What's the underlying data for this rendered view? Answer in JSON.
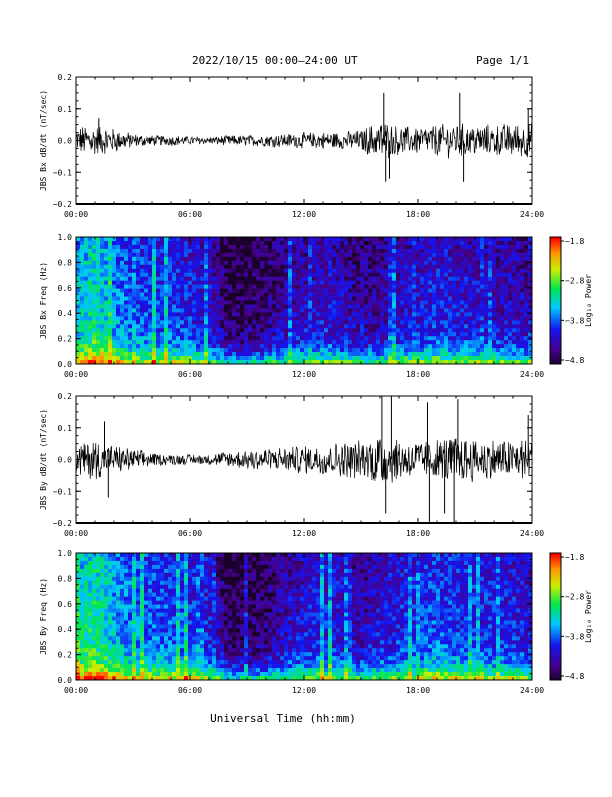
{
  "header": {
    "title": "2022/10/15  00:00–24:00 UT",
    "page_label": "Page 1/1"
  },
  "footer": {
    "xlabel": "Universal Time (hh:mm)"
  },
  "chart_data": [
    {
      "type": "line",
      "ylabel": "JBS Bx dB/dt (nT/sec)",
      "xlim": [
        0,
        24
      ],
      "ylim": [
        -0.2,
        0.2
      ],
      "yticks": [
        "0.2",
        "0.1",
        "0.0",
        "−0.1",
        "−0.2"
      ],
      "xticks": [
        "00:00",
        "06:00",
        "12:00",
        "18:00",
        "24:00"
      ],
      "envelope_x": [
        0,
        1,
        2,
        3,
        4,
        5,
        6,
        7,
        8,
        9,
        10,
        11,
        12,
        13,
        14,
        15,
        16,
        17,
        18,
        19,
        20,
        21,
        22,
        23,
        24
      ],
      "envelope_amplitude": [
        0.04,
        0.045,
        0.035,
        0.02,
        0.015,
        0.015,
        0.012,
        0.01,
        0.015,
        0.015,
        0.018,
        0.02,
        0.022,
        0.025,
        0.025,
        0.03,
        0.06,
        0.04,
        0.04,
        0.045,
        0.05,
        0.045,
        0.045,
        0.05,
        0.05
      ],
      "spikes": [
        {
          "x": 1.2,
          "y": 0.07
        },
        {
          "x": 16.2,
          "y": 0.15
        },
        {
          "x": 16.3,
          "y": -0.13
        },
        {
          "x": 16.5,
          "y": -0.12
        },
        {
          "x": 20.2,
          "y": 0.15
        },
        {
          "x": 20.4,
          "y": -0.13
        },
        {
          "x": 23.8,
          "y": 0.1
        }
      ]
    },
    {
      "type": "heatmap",
      "ylabel": "JBS Bx Freq (Hz)",
      "xlim": [
        0,
        24
      ],
      "ylim": [
        0,
        1.0
      ],
      "yticks": [
        "1.0",
        "0.8",
        "0.6",
        "0.4",
        "0.2",
        "0.0"
      ],
      "xticks": [
        "00:00",
        "06:00",
        "12:00",
        "18:00",
        "24:00"
      ],
      "colorbar": {
        "label": "Log₁₀ Power",
        "ticks": [
          "−1.8",
          "−2.8",
          "−3.8",
          "−4.8"
        ],
        "range": [
          -4.8,
          -1.8
        ]
      },
      "level_hours": [
        0,
        1,
        2,
        3,
        4,
        5,
        6,
        7,
        8,
        9,
        10,
        11,
        12,
        13,
        14,
        15,
        16,
        17,
        18,
        19,
        20,
        21,
        22,
        23,
        24
      ],
      "level_log_power": [
        -3.4,
        -3.1,
        -3.5,
        -3.7,
        -3.8,
        -3.8,
        -3.9,
        -4.0,
        -4.5,
        -4.5,
        -4.4,
        -4.2,
        -4.1,
        -4.0,
        -4.1,
        -4.3,
        -4.2,
        -4.1,
        -4.0,
        -3.9,
        -4.0,
        -4.0,
        -4.1,
        -4.1,
        -4.2
      ]
    },
    {
      "type": "line",
      "ylabel": "JBS By dB/dt (nT/sec)",
      "xlim": [
        0,
        24
      ],
      "ylim": [
        -0.2,
        0.2
      ],
      "yticks": [
        "0.2",
        "0.1",
        "0.0",
        "−0.1",
        "−0.2"
      ],
      "xticks": [
        "00:00",
        "06:00",
        "12:00",
        "18:00",
        "24:00"
      ],
      "envelope_x": [
        0,
        1,
        2,
        3,
        4,
        5,
        6,
        7,
        8,
        9,
        10,
        11,
        12,
        13,
        14,
        15,
        16,
        17,
        18,
        19,
        20,
        21,
        22,
        23,
        24
      ],
      "envelope_amplitude": [
        0.045,
        0.06,
        0.04,
        0.03,
        0.02,
        0.015,
        0.015,
        0.015,
        0.025,
        0.03,
        0.035,
        0.035,
        0.04,
        0.045,
        0.05,
        0.055,
        0.08,
        0.06,
        0.055,
        0.06,
        0.07,
        0.06,
        0.06,
        0.06,
        0.06
      ],
      "spikes": [
        {
          "x": 1.5,
          "y": 0.12
        },
        {
          "x": 1.7,
          "y": -0.12
        },
        {
          "x": 16.1,
          "y": 0.2
        },
        {
          "x": 16.3,
          "y": -0.17
        },
        {
          "x": 16.6,
          "y": 0.2
        },
        {
          "x": 18.5,
          "y": 0.18
        },
        {
          "x": 18.6,
          "y": -0.2
        },
        {
          "x": 19.4,
          "y": -0.17
        },
        {
          "x": 19.9,
          "y": -0.2
        },
        {
          "x": 20.1,
          "y": 0.19
        },
        {
          "x": 23.8,
          "y": 0.14
        }
      ]
    },
    {
      "type": "heatmap",
      "ylabel": "JBS By Freq (Hz)",
      "xlim": [
        0,
        24
      ],
      "ylim": [
        0,
        1.0
      ],
      "yticks": [
        "1.0",
        "0.8",
        "0.6",
        "0.4",
        "0.2",
        "0.0"
      ],
      "xticks": [
        "00:00",
        "06:00",
        "12:00",
        "18:00",
        "24:00"
      ],
      "colorbar": {
        "label": "Log₁₀ Power",
        "ticks": [
          "−1.8",
          "−2.8",
          "−3.8",
          "−4.8"
        ],
        "range": [
          -4.8,
          -1.8
        ]
      },
      "level_hours": [
        0,
        1,
        2,
        3,
        4,
        5,
        6,
        7,
        8,
        9,
        10,
        11,
        12,
        13,
        14,
        15,
        16,
        17,
        18,
        19,
        20,
        21,
        22,
        23,
        24
      ],
      "level_log_power": [
        -3.3,
        -3.0,
        -3.4,
        -3.6,
        -3.7,
        -3.7,
        -3.8,
        -3.9,
        -4.5,
        -4.5,
        -4.4,
        -4.1,
        -4.0,
        -3.9,
        -4.0,
        -4.2,
        -4.0,
        -3.9,
        -3.8,
        -3.7,
        -3.8,
        -3.8,
        -3.9,
        -3.9,
        -4.0
      ]
    }
  ]
}
